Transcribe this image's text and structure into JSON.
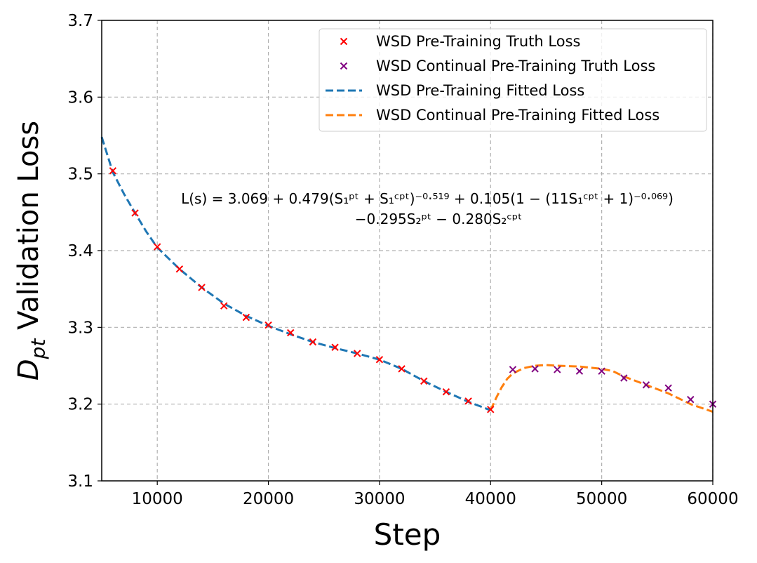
{
  "chart_data": {
    "type": "line",
    "title": "",
    "xlabel": "Step",
    "ylabel_main": "D",
    "ylabel_sub": "pt",
    "ylabel_rest": " Validation Loss",
    "xlim": [
      5000,
      60000
    ],
    "ylim": [
      3.1,
      3.7
    ],
    "xticks": [
      10000,
      20000,
      30000,
      40000,
      50000,
      60000
    ],
    "yticks": [
      3.1,
      3.2,
      3.3,
      3.4,
      3.5,
      3.6,
      3.7
    ],
    "grid": true,
    "legend_position": "upper-right",
    "colors": {
      "pt_truth": "#ff0000",
      "cpt_truth": "#800080",
      "pt_fit": "#1f77b4",
      "cpt_fit": "#ff7f0e"
    },
    "legend": [
      {
        "label": "WSD Pre-Training Truth Loss",
        "kind": "marker",
        "series": "pt_truth"
      },
      {
        "label": "WSD Continual Pre-Training Truth Loss",
        "kind": "marker",
        "series": "cpt_truth"
      },
      {
        "label": "WSD Pre-Training Fitted Loss",
        "kind": "dashed",
        "series": "pt_fit"
      },
      {
        "label": "WSD Continual Pre-Training Fitted Loss",
        "kind": "dashed",
        "series": "cpt_fit"
      }
    ],
    "annotation": {
      "line1": "L(s) = 3.069 + 0.479(S₁ᵖᵗ + S₁ᶜᵖᵗ)⁻⁰·⁵¹⁹ + 0.105(1 − (11S₁ᶜᵖᵗ + 1)⁻⁰·⁰⁶⁹)",
      "line2": "−0.295S₂ᵖᵗ − 0.280S₂ᶜᵖᵗ"
    },
    "series": [
      {
        "name": "WSD Pre-Training Truth Loss",
        "key": "pt_truth",
        "x": [
          6000,
          8000,
          10000,
          12000,
          14000,
          16000,
          18000,
          20000,
          22000,
          24000,
          26000,
          28000,
          30000,
          32000,
          34000,
          36000,
          38000,
          40000
        ],
        "y": [
          3.504,
          3.449,
          3.405,
          3.376,
          3.352,
          3.328,
          3.313,
          3.303,
          3.293,
          3.281,
          3.274,
          3.266,
          3.258,
          3.246,
          3.23,
          3.216,
          3.204,
          3.193
        ]
      },
      {
        "name": "WSD Continual Pre-Training Truth Loss",
        "key": "cpt_truth",
        "x": [
          42000,
          44000,
          46000,
          48000,
          50000,
          52000,
          54000,
          56000,
          58000,
          60000
        ],
        "y": [
          3.245,
          3.246,
          3.245,
          3.243,
          3.243,
          3.234,
          3.225,
          3.221,
          3.206,
          3.2
        ]
      },
      {
        "name": "WSD Pre-Training Fitted Loss",
        "key": "pt_fit",
        "x": [
          5000,
          6000,
          7000,
          8000,
          9000,
          10000,
          12000,
          14000,
          16000,
          18000,
          20000,
          22000,
          24000,
          26000,
          28000,
          30000,
          32000,
          34000,
          36000,
          38000,
          40000
        ],
        "y": [
          3.548,
          3.502,
          3.474,
          3.449,
          3.425,
          3.404,
          3.376,
          3.352,
          3.331,
          3.315,
          3.302,
          3.291,
          3.281,
          3.273,
          3.266,
          3.258,
          3.246,
          3.23,
          3.216,
          3.203,
          3.192
        ]
      },
      {
        "name": "WSD Continual Pre-Training Fitted Loss",
        "key": "cpt_fit",
        "x": [
          40000,
          40500,
          41000,
          41500,
          42000,
          43000,
          44000,
          45000,
          46000,
          48000,
          50000,
          51000,
          52000,
          54000,
          56000,
          58000,
          60000
        ],
        "y": [
          3.192,
          3.208,
          3.222,
          3.233,
          3.24,
          3.247,
          3.25,
          3.251,
          3.25,
          3.249,
          3.246,
          3.243,
          3.236,
          3.225,
          3.214,
          3.2,
          3.19
        ]
      }
    ]
  }
}
